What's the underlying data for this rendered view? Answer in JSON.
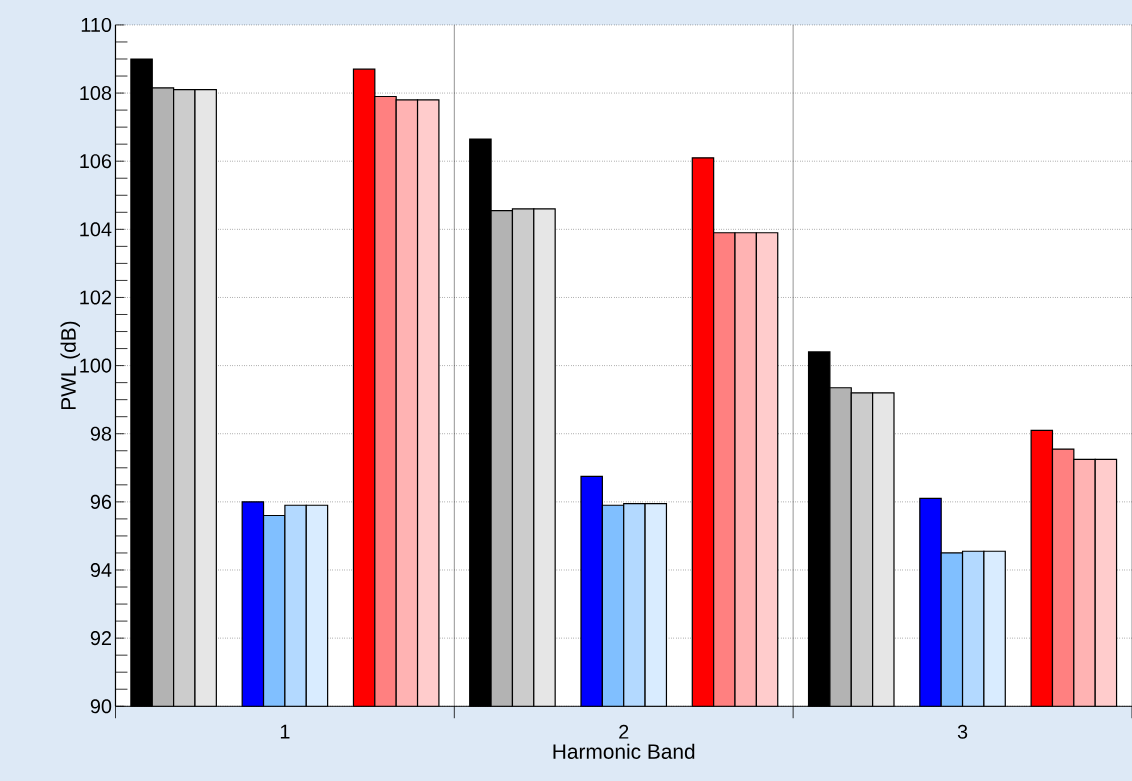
{
  "chart_data": {
    "type": "bar",
    "xlabel": "Harmonic Band",
    "ylabel": "PWL (dB)",
    "categories": [
      "1",
      "2",
      "3"
    ],
    "series": [
      {
        "color": "#000000",
        "values": [
          109.0,
          106.65,
          100.4
        ]
      },
      {
        "color": "#b3b3b3",
        "values": [
          108.15,
          104.55,
          99.35
        ]
      },
      {
        "color": "#cccccc",
        "values": [
          108.1,
          104.6,
          99.2
        ]
      },
      {
        "color": "#e6e6e6",
        "values": [
          108.1,
          104.6,
          99.2
        ]
      },
      {
        "color": "#0000ff",
        "values": [
          96.0,
          96.75,
          96.1
        ]
      },
      {
        "color": "#80bfff",
        "values": [
          95.6,
          95.9,
          94.5
        ]
      },
      {
        "color": "#b3d9ff",
        "values": [
          95.9,
          95.95,
          94.55
        ]
      },
      {
        "color": "#d9ecff",
        "values": [
          95.9,
          95.95,
          94.55
        ]
      },
      {
        "color": "#ff0000",
        "values": [
          108.7,
          106.1,
          98.1
        ]
      },
      {
        "color": "#ff8080",
        "values": [
          107.9,
          103.9,
          97.55
        ]
      },
      {
        "color": "#ffb3b3",
        "values": [
          107.8,
          103.9,
          97.25
        ]
      },
      {
        "color": "#ffcccc",
        "values": [
          107.8,
          103.9,
          97.25
        ]
      }
    ],
    "ylim": [
      90,
      110
    ],
    "yticks": [
      90,
      92,
      94,
      96,
      98,
      100,
      102,
      104,
      106,
      108,
      110
    ],
    "grid": "y"
  }
}
